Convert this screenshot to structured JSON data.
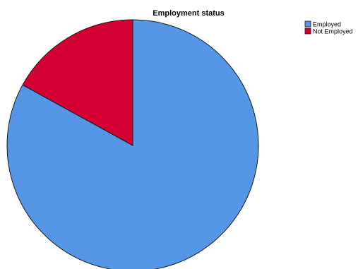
{
  "chart_data": {
    "type": "pie",
    "title": "Employment status",
    "categories": [
      "Employed",
      "Not Employed"
    ],
    "values": [
      83,
      17
    ],
    "colors": [
      "#5596E6",
      "#D50032"
    ],
    "legend_position": "top-right"
  }
}
